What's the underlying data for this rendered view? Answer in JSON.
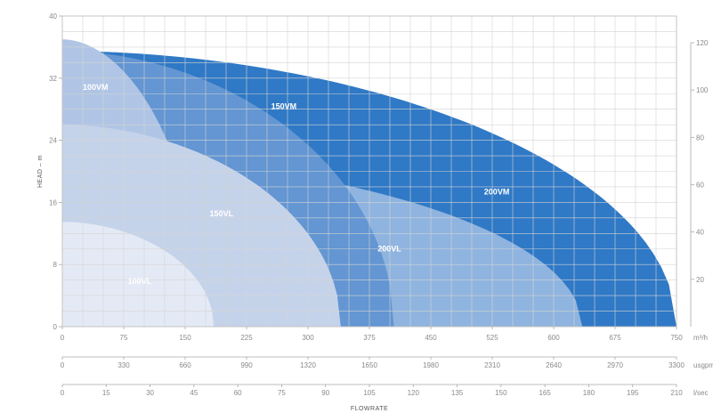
{
  "chart_data": {
    "type": "area",
    "title": "",
    "ylabel": "HEAD – m",
    "xlabel": "FLOWRATE",
    "ylim": [
      0,
      40
    ],
    "xlim": [
      0,
      750
    ],
    "grid": true,
    "y_ticks": [
      "0",
      "8",
      "16",
      "24",
      "32",
      "40"
    ],
    "y_ticks_right": [
      "20",
      "40",
      "60",
      "80",
      "100",
      "120"
    ],
    "x_axes": [
      {
        "unit": "m³/h",
        "ticks": [
          "0",
          "75",
          "150",
          "225",
          "300",
          "375",
          "450",
          "525",
          "600",
          "675",
          "750"
        ]
      },
      {
        "unit": "usgpm",
        "ticks": [
          "0",
          "330",
          "660",
          "990",
          "1320",
          "1650",
          "1980",
          "2310",
          "2640",
          "2970",
          "3300"
        ]
      },
      {
        "unit": "l/sec",
        "ticks": [
          "0",
          "15",
          "30",
          "45",
          "60",
          "75",
          "90",
          "105",
          "120",
          "135",
          "150",
          "165",
          "180",
          "195",
          "210"
        ]
      }
    ],
    "series": [
      {
        "name": "200VM",
        "color": "#2f79c6",
        "shutoff_head": 35.5,
        "max_flow": 750
      },
      {
        "name": "200VL",
        "color": "#8fb4df",
        "shutoff_head": 22.0,
        "max_flow": 635
      },
      {
        "name": "150VM",
        "color": "#6396d2",
        "shutoff_head": 35.5,
        "max_flow": 405
      },
      {
        "name": "100VM",
        "color": "#b0c5e5",
        "shutoff_head": 37.0,
        "max_flow": 170
      },
      {
        "name": "150VL",
        "color": "#c5d3ea",
        "shutoff_head": 26.0,
        "max_flow": 340
      },
      {
        "name": "100VL",
        "color": "#e4eaf5",
        "shutoff_head": 13.5,
        "max_flow": 185
      }
    ]
  }
}
